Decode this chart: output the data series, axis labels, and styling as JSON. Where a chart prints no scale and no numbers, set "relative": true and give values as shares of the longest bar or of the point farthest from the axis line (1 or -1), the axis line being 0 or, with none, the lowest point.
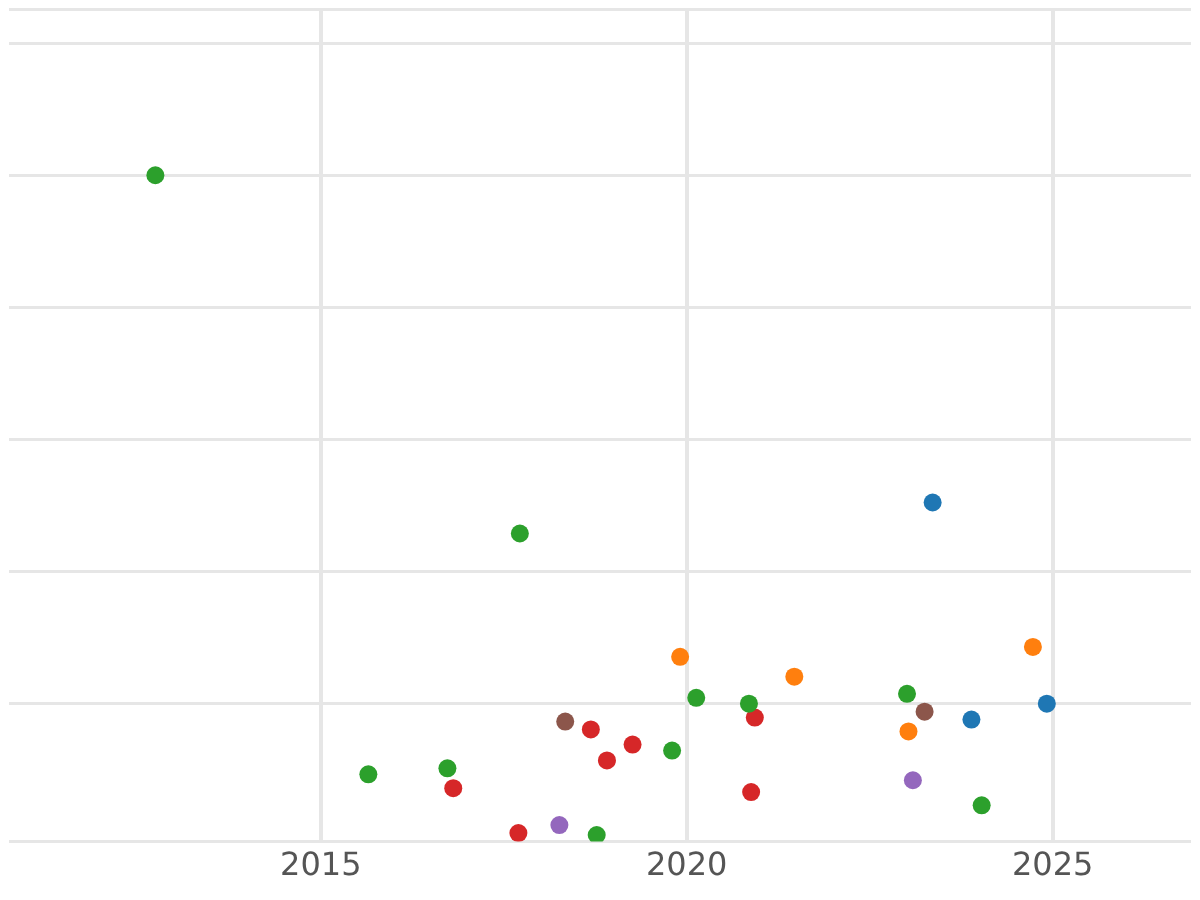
{
  "chart_data": {
    "type": "scatter",
    "relative": true,
    "grid": true,
    "legend": false,
    "marker": "circle",
    "xlim": [
      2010.74,
      2026.89
    ],
    "xticks": [
      2015,
      2020,
      2025
    ],
    "series": [
      {
        "color": "#2ca02c",
        "x": [
          2012.74,
          2017.72,
          2015.65,
          2016.73,
          2020.13,
          2020.85,
          2019.8,
          2018.77,
          2023.01,
          2024.03
        ],
        "values": [
          1.0,
          0.457,
          0.092,
          0.101,
          0.208,
          0.199,
          0.128,
          0.0,
          0.214,
          0.045
        ]
      },
      {
        "color": "#1f77b4",
        "x": [
          2023.36,
          2023.89,
          2024.92
        ],
        "values": [
          0.504,
          0.175,
          0.199
        ]
      },
      {
        "color": "#ff7f0e",
        "x": [
          2019.91,
          2021.47,
          2024.73,
          2023.03
        ],
        "values": [
          0.27,
          0.24,
          0.285,
          0.157
        ]
      },
      {
        "color": "#d62728",
        "x": [
          2016.81,
          2017.7,
          2018.69,
          2018.91,
          2019.26,
          2020.93,
          2020.88
        ],
        "values": [
          0.071,
          0.003,
          0.16,
          0.113,
          0.137,
          0.178,
          0.065
        ]
      },
      {
        "color": "#8c564b",
        "x": [
          2018.34,
          2023.25
        ],
        "values": [
          0.172,
          0.187
        ]
      },
      {
        "color": "#9467bd",
        "x": [
          2018.26,
          2023.09
        ],
        "values": [
          0.015,
          0.083
        ]
      }
    ]
  }
}
